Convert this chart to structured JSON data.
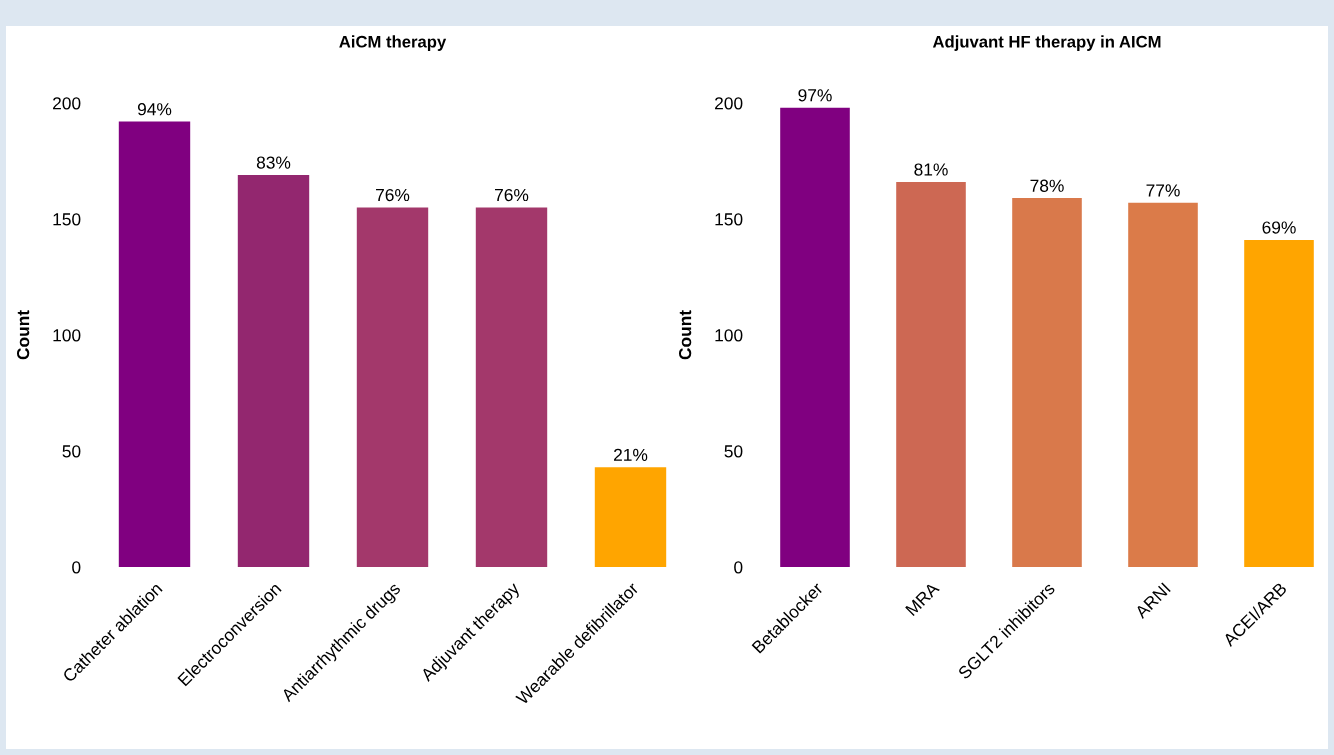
{
  "chart_data": [
    {
      "type": "bar",
      "title": "AiCM therapy",
      "ylabel": "Count",
      "categories": [
        "Catheter ablation",
        "Electroconversion",
        "Antiarrhythmic drugs",
        "Adjuvant therapy",
        "Wearable defibrillator"
      ],
      "values": [
        192,
        169,
        155,
        155,
        43
      ],
      "colors": [
        "#800080",
        "#93276f",
        "#a3386b",
        "#a3386b",
        "#ffa500"
      ],
      "annotations": [
        {
          "text": "94%",
          "x": "Catheter ablation",
          "y": 192
        },
        {
          "text": "83%",
          "x": "Electroconversion",
          "y": 169
        },
        {
          "text": "76%",
          "x": "Antiarrhythmic drugs",
          "y": 155
        },
        {
          "text": "76%",
          "x": "Adjuvant therapy",
          "y": 155
        },
        {
          "text": "21%",
          "x": "Wearable defibrillator",
          "y": 43
        }
      ],
      "ylim": [
        0,
        200
      ],
      "yticks": [
        0,
        50,
        100,
        150,
        200
      ]
    },
    {
      "type": "bar",
      "title": "Adjuvant HF therapy in AICM",
      "ylabel": "Count",
      "categories": [
        "Betablocker",
        "MRA",
        "SGLT2 inhibitors",
        "ARNI",
        "ACEI/ARB"
      ],
      "values": [
        198,
        166,
        159,
        157,
        141
      ],
      "colors": [
        "#800080",
        "#cd6853",
        "#d9794b",
        "#db7b49",
        "#ffa500"
      ],
      "annotations": [
        {
          "text": "97%",
          "x": "Betablocker",
          "y": 198
        },
        {
          "text": "81%",
          "x": "MRA",
          "y": 166
        },
        {
          "text": "78%",
          "x": "SGLT2 inhibitors",
          "y": 159
        },
        {
          "text": "77%",
          "x": "ARNI",
          "y": 157
        },
        {
          "text": "69%",
          "x": "ACEI/ARB",
          "y": 141
        }
      ],
      "ylim": [
        0,
        200
      ],
      "yticks": [
        0,
        50,
        100,
        150,
        200
      ]
    }
  ]
}
